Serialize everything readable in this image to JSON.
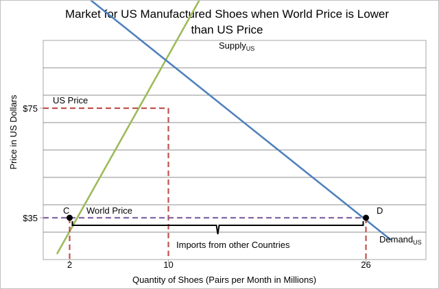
{
  "chart_data": {
    "type": "line",
    "title_line1": "Market for US Manufactured Shoes when World Price is Lower",
    "title_line2": "than US Price",
    "xlabel": "Quantity of Shoes (Pairs per Month in Millions)",
    "ylabel": "Price in US Dollars",
    "x_ticks": [
      {
        "value": 2,
        "label": "2"
      },
      {
        "value": 10,
        "label": "10"
      },
      {
        "value": 26,
        "label": "26"
      }
    ],
    "y_ticks": [
      {
        "value": 35,
        "label": "$35"
      },
      {
        "value": 75,
        "label": "$75"
      }
    ],
    "grid": true,
    "series": [
      {
        "key": "supply",
        "name_main": "Supply",
        "name_sub": "US",
        "color": "#9bbb59",
        "points": [
          [
            1,
            22
          ],
          [
            13.2,
            120
          ]
        ]
      },
      {
        "key": "demand",
        "name_main": "Demand",
        "name_sub": "US",
        "color": "#4f81bd",
        "points": [
          [
            3,
            117
          ],
          [
            28,
            27
          ]
        ]
      }
    ],
    "guides": {
      "us_price": {
        "label": "US Price",
        "value": 75,
        "quantity": 10,
        "color": "#c0504d"
      },
      "world_price": {
        "label": "World Price",
        "value": 35,
        "from": 2,
        "to": 26,
        "color": "#8064a2"
      },
      "domestic_supply_drop": {
        "quantity": 2,
        "color": "#c0504d"
      },
      "demand_drop": {
        "quantity": 26,
        "color": "#c0504d"
      }
    },
    "points": [
      {
        "label": "C",
        "x": 2,
        "y": 35
      },
      {
        "label": "D",
        "x": 26,
        "y": 35
      }
    ],
    "annotation": {
      "label": "Imports from other Countries",
      "from": 2,
      "to": 26
    }
  }
}
